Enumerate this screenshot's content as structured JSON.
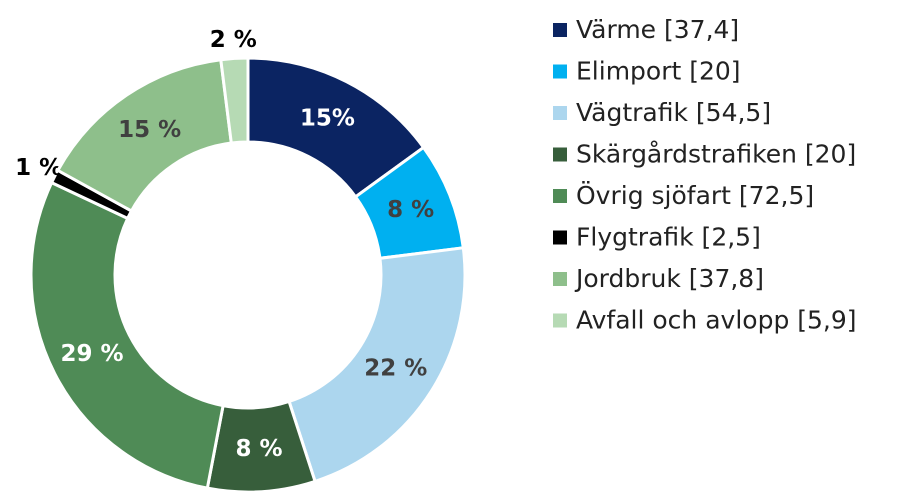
{
  "chart_data": {
    "type": "donut",
    "categories": [
      "Värme [37,4]",
      "Elimport [20]",
      "Vägtrafik [54,5]",
      "Skärgårdstrafiken [20]",
      "Övrig sjöfart [72,5]",
      "Flygtrafik [2,5]",
      "Jordbruk [37,8]",
      "Avfall och avlopp [5,9]"
    ],
    "values": [
      15,
      8,
      22,
      8,
      29,
      1,
      15,
      2
    ],
    "value_labels": [
      "15%",
      "8 %",
      "22 %",
      "8 %",
      "29 %",
      "1 %",
      "15 %",
      "2 %"
    ],
    "colors": [
      "#0b2462",
      "#00b0f0",
      "#acd6ee",
      "#375e3b",
      "#4f8b56",
      "#000000",
      "#8ebf8b",
      "#b6dab4"
    ],
    "legend": "right"
  }
}
